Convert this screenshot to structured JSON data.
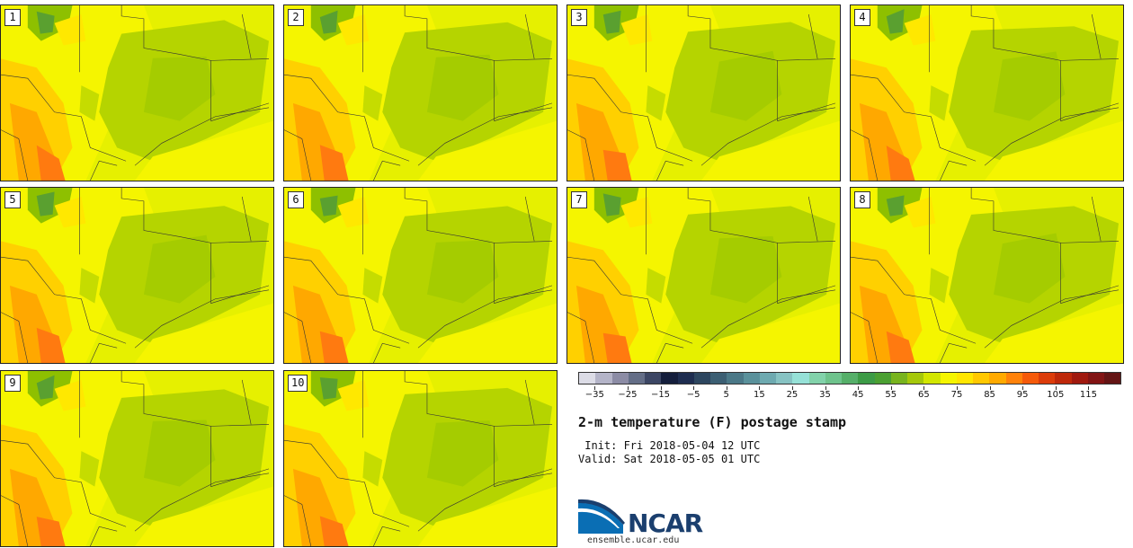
{
  "panels": [
    {
      "label": "1"
    },
    {
      "label": "2"
    },
    {
      "label": "3"
    },
    {
      "label": "4"
    },
    {
      "label": "5"
    },
    {
      "label": "6"
    },
    {
      "label": "7"
    },
    {
      "label": "8"
    },
    {
      "label": "9"
    },
    {
      "label": "10"
    }
  ],
  "colorbar": {
    "ticks": [
      "−35",
      "−25",
      "−15",
      "−5",
      "5",
      "15",
      "25",
      "35",
      "45",
      "55",
      "65",
      "75",
      "85",
      "95",
      "105",
      "115"
    ],
    "colors": [
      "#dcdce6",
      "#b4b4c8",
      "#8c8ca5",
      "#646e87",
      "#3c4664",
      "#141e3c",
      "#1e2d50",
      "#2d465f",
      "#3c5f73",
      "#4b7887",
      "#5a919b",
      "#6eaab0",
      "#87c3c3",
      "#96e1d7",
      "#82d2aa",
      "#6ec38c",
      "#55af69",
      "#3c9b46",
      "#4ba032",
      "#78b41e",
      "#a5c80a",
      "#d2e600",
      "#f5f500",
      "#ffe600",
      "#ffc800",
      "#ffaa00",
      "#ff820a",
      "#f55a0a",
      "#dc3c0a",
      "#be280a",
      "#a0190f",
      "#821414",
      "#641414"
    ]
  },
  "title": "2-m temperature (F) postage stamp",
  "init": " Init: Fri 2018-05-04 12 UTC",
  "valid": "Valid: Sat 2018-05-05 01 UTC",
  "logo": {
    "text": "NCAR",
    "url": "ensemble.ucar.edu",
    "color": "#1b3f6e",
    "accent": "#0a6eb4"
  }
}
